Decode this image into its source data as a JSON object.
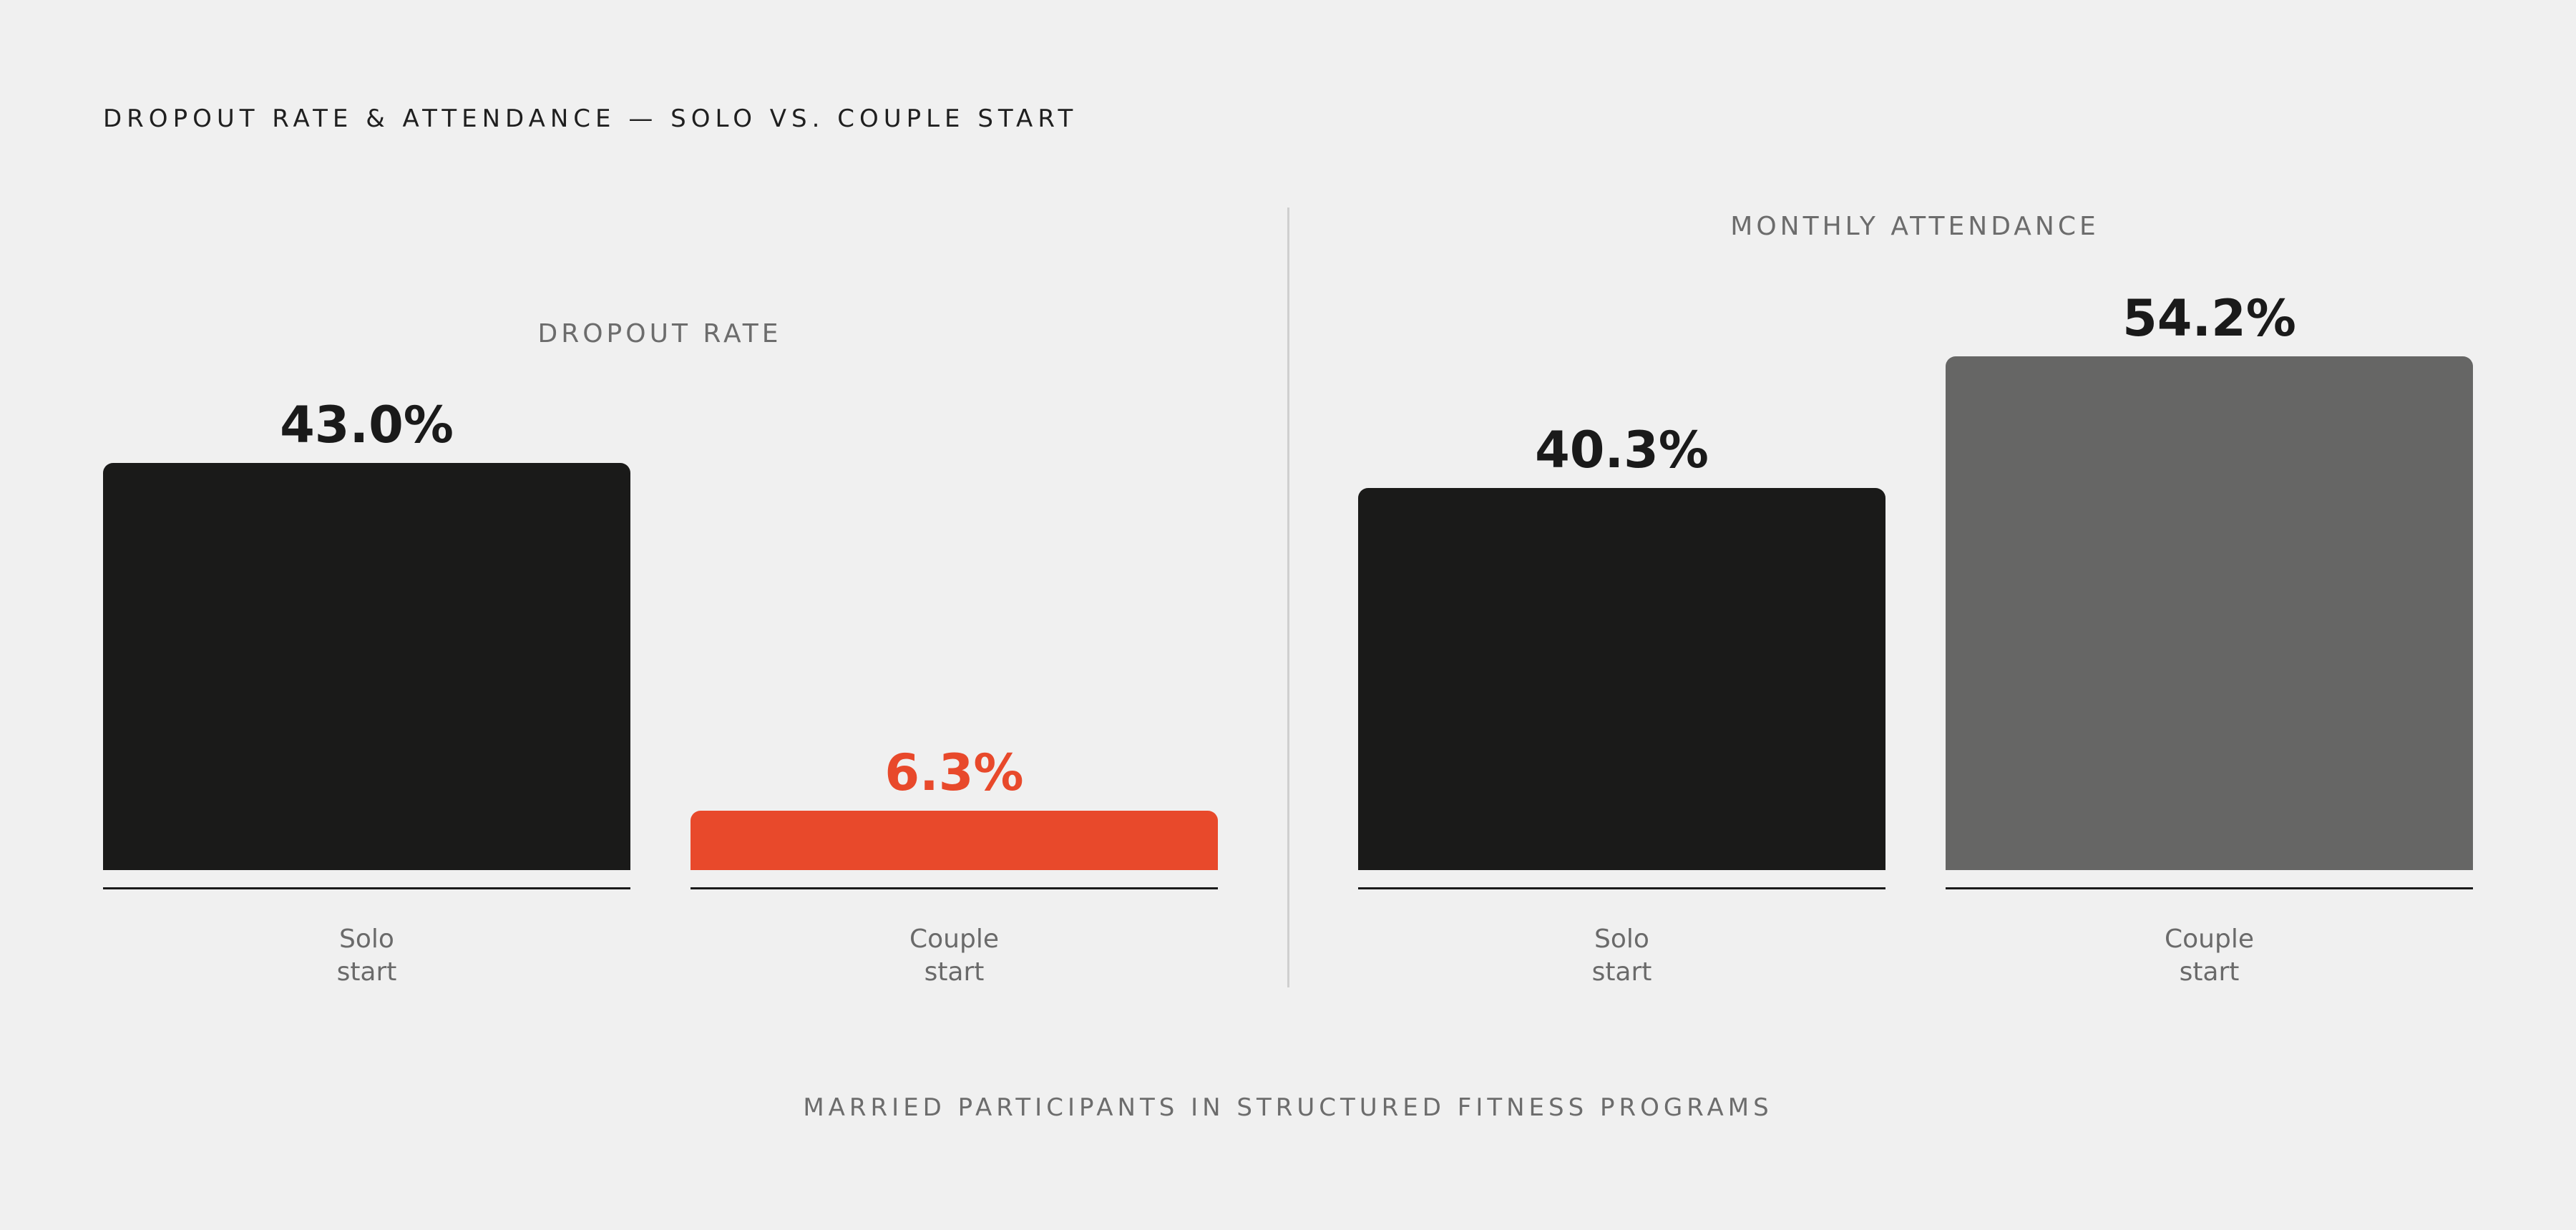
{
  "title": "DROPOUT RATE & ATTENDANCE — SOLO VS. COUPLE START",
  "footer": "MARRIED PARTICIPANTS IN STRUCTURED FITNESS PROGRAMS",
  "colors": {
    "background": "#f0f0f0",
    "solo": "#1a1a19",
    "couple_dropout": "#e8492b",
    "couple_attendance": "#666665",
    "value_text": "#1a1a1a"
  },
  "chart_data": [
    {
      "type": "bar",
      "title": "DROPOUT RATE",
      "unit": "%",
      "categories": [
        "Solo\nstart",
        "Couple\nstart"
      ],
      "values": [
        43.0,
        6.3
      ],
      "value_labels": [
        "43.0%",
        "6.3%"
      ],
      "bar_colors": [
        "#1a1a19",
        "#e8492b"
      ],
      "label_colors": [
        "#1a1a1a",
        "#e8492b"
      ],
      "grid": false
    },
    {
      "type": "bar",
      "title": "MONTHLY ATTENDANCE",
      "unit": "%",
      "categories": [
        "Solo\nstart",
        "Couple\nstart"
      ],
      "values": [
        40.3,
        54.2
      ],
      "value_labels": [
        "40.3%",
        "54.2%"
      ],
      "bar_colors": [
        "#1a1a19",
        "#666665"
      ],
      "label_colors": [
        "#1a1a1a",
        "#1a1a1a"
      ],
      "grid": false
    }
  ]
}
